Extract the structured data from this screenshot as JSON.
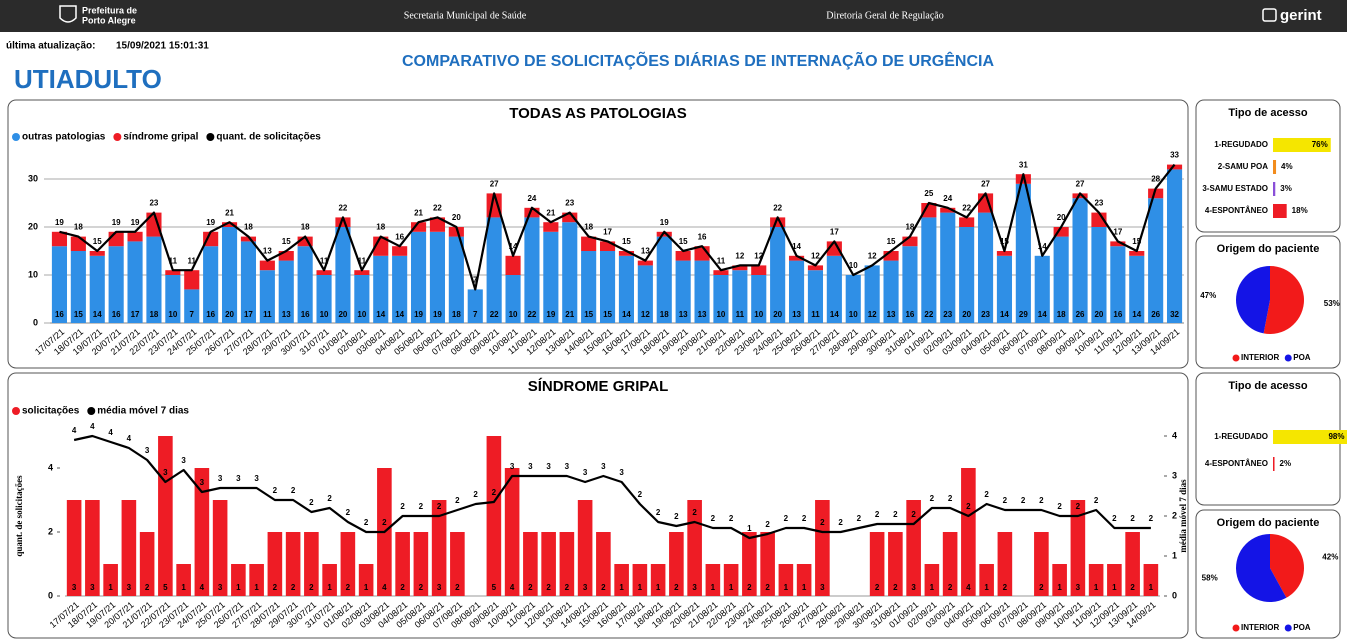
{
  "header": {
    "logo_line1": "Prefeitura de",
    "logo_line2": "Porto Alegre",
    "secretaria": "Secretaria Municipal de Saúde",
    "diretoria": "Diretoria Geral de Regulação",
    "brand": "gerint"
  },
  "update": {
    "label": "última atualização:",
    "timestamp": "15/09/2021 15:01:31"
  },
  "page_title": "COMPARATIVO DE SOLICITAÇÕES DIÁRIAS DE INTERNAÇÃO DE URGÊNCIA",
  "unit": "UTIADULTO",
  "chart_data": [
    {
      "type": "combo",
      "title": "TODAS AS PATOLOGIAS",
      "categories": [
        "17/07/21",
        "18/07/21",
        "19/07/21",
        "20/07/21",
        "21/07/21",
        "22/07/21",
        "23/07/21",
        "24/07/21",
        "25/07/21",
        "26/07/21",
        "27/07/21",
        "28/07/21",
        "29/07/21",
        "30/07/21",
        "31/07/21",
        "01/08/21",
        "02/08/21",
        "03/08/21",
        "04/08/21",
        "05/08/21",
        "06/08/21",
        "07/08/21",
        "08/08/21",
        "09/08/21",
        "10/08/21",
        "11/08/21",
        "12/08/21",
        "13/08/21",
        "14/08/21",
        "15/08/21",
        "16/08/21",
        "17/08/21",
        "18/08/21",
        "19/08/21",
        "20/08/21",
        "21/08/21",
        "22/08/21",
        "23/08/21",
        "24/08/21",
        "25/08/21",
        "26/08/21",
        "27/08/21",
        "28/08/21",
        "29/08/21",
        "30/08/21",
        "31/08/21",
        "01/09/21",
        "02/09/21",
        "03/09/21",
        "04/09/21",
        "05/09/21",
        "06/09/21",
        "07/09/21",
        "08/09/21",
        "09/09/21",
        "10/09/21",
        "11/09/21",
        "12/09/21",
        "13/09/21",
        "14/09/21"
      ],
      "series": [
        {
          "name": "outras patologias",
          "color": "#2f8fe6",
          "mark": "bar",
          "show_labels": true,
          "values": [
            16,
            15,
            14,
            16,
            17,
            18,
            10,
            7,
            16,
            20,
            17,
            11,
            13,
            16,
            10,
            20,
            10,
            14,
            14,
            19,
            19,
            18,
            7,
            22,
            10,
            22,
            19,
            21,
            15,
            15,
            14,
            12,
            18,
            13,
            13,
            10,
            11,
            10,
            20,
            13,
            11,
            14,
            10,
            12,
            13,
            16,
            22,
            23,
            20,
            23,
            14,
            29,
            14,
            18,
            26,
            20,
            16,
            14,
            26,
            32
          ]
        },
        {
          "name": "síndrome gripal",
          "color": "#ee1c25",
          "mark": "bar",
          "values": [
            3,
            3,
            1,
            3,
            2,
            5,
            1,
            4,
            3,
            1,
            1,
            2,
            2,
            2,
            1,
            2,
            1,
            4,
            2,
            2,
            3,
            2,
            0,
            5,
            4,
            2,
            2,
            2,
            3,
            2,
            1,
            1,
            1,
            2,
            3,
            1,
            1,
            2,
            2,
            1,
            1,
            3,
            0,
            0,
            2,
            2,
            3,
            1,
            2,
            4,
            1,
            2,
            0,
            2,
            1,
            3,
            1,
            1,
            2,
            1
          ]
        },
        {
          "name": "quant. de solicitações",
          "color": "#000000",
          "mark": "line",
          "values": [
            19,
            18,
            15,
            19,
            19,
            23,
            11,
            11,
            19,
            21,
            18,
            13,
            15,
            18,
            11,
            22,
            11,
            18,
            16,
            21,
            22,
            20,
            7,
            27,
            14,
            24,
            21,
            23,
            18,
            17,
            15,
            13,
            19,
            15,
            16,
            11,
            12,
            12,
            22,
            14,
            12,
            17,
            10,
            12,
            15,
            18,
            25,
            24,
            22,
            27,
            15,
            31,
            14,
            20,
            27,
            23,
            17,
            15,
            28,
            33
          ]
        }
      ],
      "ylim": [
        0,
        35
      ],
      "yticks": [
        0,
        10,
        20,
        30
      ],
      "grid": true
    },
    {
      "type": "combo",
      "title": "SÍNDROME GRIPAL",
      "y_label": "quant. de solicitações",
      "y2_label": "média móvel 7 dias",
      "categories": [
        "17/07/21",
        "18/07/21",
        "19/07/21",
        "20/07/21",
        "21/07/21",
        "22/07/21",
        "23/07/21",
        "24/07/21",
        "25/07/21",
        "26/07/21",
        "27/07/21",
        "28/07/21",
        "29/07/21",
        "30/07/21",
        "31/07/21",
        "01/08/21",
        "02/08/21",
        "03/08/21",
        "04/08/21",
        "05/08/21",
        "06/08/21",
        "07/08/21",
        "08/08/21",
        "09/08/21",
        "10/08/21",
        "11/08/21",
        "12/08/21",
        "13/08/21",
        "14/08/21",
        "15/08/21",
        "16/08/21",
        "17/08/21",
        "18/08/21",
        "19/08/21",
        "20/08/21",
        "21/08/21",
        "22/08/21",
        "23/08/21",
        "24/08/21",
        "25/08/21",
        "26/08/21",
        "27/08/21",
        "28/08/21",
        "29/08/21",
        "30/08/21",
        "31/08/21",
        "01/09/21",
        "02/09/21",
        "03/09/21",
        "04/09/21",
        "05/09/21",
        "06/09/21",
        "07/09/21",
        "08/09/21",
        "09/09/21",
        "10/09/21",
        "11/09/21",
        "12/09/21",
        "13/09/21",
        "14/09/21"
      ],
      "series": [
        {
          "name": "solicitações",
          "color": "#ee1c25",
          "mark": "bar",
          "show_labels": true,
          "values": [
            3,
            3,
            1,
            3,
            2,
            5,
            1,
            4,
            3,
            1,
            1,
            2,
            2,
            2,
            1,
            2,
            1,
            4,
            2,
            2,
            3,
            2,
            0,
            5,
            4,
            2,
            2,
            2,
            3,
            2,
            1,
            1,
            1,
            2,
            3,
            1,
            1,
            2,
            2,
            1,
            1,
            3,
            0,
            0,
            2,
            2,
            3,
            1,
            2,
            4,
            1,
            2,
            0,
            2,
            1,
            3,
            1,
            1,
            2,
            1
          ]
        },
        {
          "name": "média móvel 7 dias",
          "color": "#000000",
          "mark": "line",
          "axis": "y2",
          "values": [
            3.9,
            4.0,
            3.85,
            3.7,
            3.4,
            2.85,
            3.15,
            2.6,
            2.7,
            2.7,
            2.7,
            2.4,
            2.4,
            2.1,
            2.2,
            1.85,
            1.6,
            1.6,
            2.0,
            2.0,
            2.0,
            2.15,
            2.3,
            2.35,
            3.0,
            3.0,
            3.0,
            3.0,
            2.85,
            3.0,
            2.85,
            2.3,
            1.85,
            1.75,
            1.85,
            1.7,
            1.7,
            1.45,
            1.55,
            1.7,
            1.7,
            1.6,
            1.6,
            1.7,
            1.8,
            1.8,
            1.8,
            2.2,
            2.2,
            2.0,
            2.3,
            2.15,
            2.15,
            2.15,
            2.0,
            2.0,
            2.15,
            1.7,
            1.7,
            1.7
          ],
          "value_labels": [
            "4",
            "4",
            "4",
            "4",
            "3",
            "3",
            "3",
            "3",
            "3",
            "3",
            "3",
            "2",
            "2",
            "2",
            "2",
            "2",
            "2",
            "2",
            "2",
            "2",
            "2",
            "2",
            "2",
            "2",
            "3",
            "3",
            "3",
            "3",
            "3",
            "3",
            "3",
            "2",
            "2",
            "2",
            "2",
            "2",
            "2",
            "1",
            "2",
            "2",
            "2",
            "2",
            "2",
            "2",
            "2",
            "2",
            "2",
            "2",
            "2",
            "2",
            "2",
            "2",
            "2",
            "2",
            "2",
            "2",
            "2",
            "2",
            "2",
            "2"
          ]
        }
      ],
      "ylim": [
        0,
        5
      ],
      "yticks": [
        0,
        2,
        4
      ],
      "y2lim": [
        0,
        4
      ],
      "y2ticks": [
        0,
        1,
        2,
        3,
        4
      ],
      "grid": false
    },
    {
      "type": "bar",
      "orientation": "horizontal",
      "title": "Tipo de acesso",
      "categories": [
        "1-REGUDADO",
        "2-SAMU POA",
        "3-SAMU ESTADO",
        "4-ESPONTÂNEO"
      ],
      "values": [
        76,
        4,
        3,
        18
      ],
      "value_labels": [
        "76%",
        "4%",
        "3%",
        "18%"
      ],
      "colors": [
        "#f5e600",
        "#f28c1c",
        "#8a4fd8",
        "#ee1c25"
      ],
      "xlim": [
        0,
        100
      ]
    },
    {
      "type": "pie",
      "title": "Origem do paciente",
      "categories": [
        "INTERIOR",
        "POA"
      ],
      "values": [
        53,
        47
      ],
      "value_labels": [
        "53%",
        "47%"
      ],
      "colors": [
        "#f21a1a",
        "#1414e6"
      ]
    },
    {
      "type": "bar",
      "orientation": "horizontal",
      "title": "Tipo de acesso",
      "categories": [
        "1-REGUDADO",
        "4-ESPONTÂNEO"
      ],
      "values": [
        98,
        2
      ],
      "value_labels": [
        "98%",
        "2%"
      ],
      "colors": [
        "#f5e600",
        "#ee1c25"
      ],
      "xlim": [
        0,
        100
      ]
    },
    {
      "type": "pie",
      "title": "Origem do paciente",
      "categories": [
        "INTERIOR",
        "POA"
      ],
      "values": [
        42,
        58
      ],
      "value_labels": [
        "42%",
        "58%"
      ],
      "colors": [
        "#f21a1a",
        "#1414e6"
      ]
    }
  ]
}
